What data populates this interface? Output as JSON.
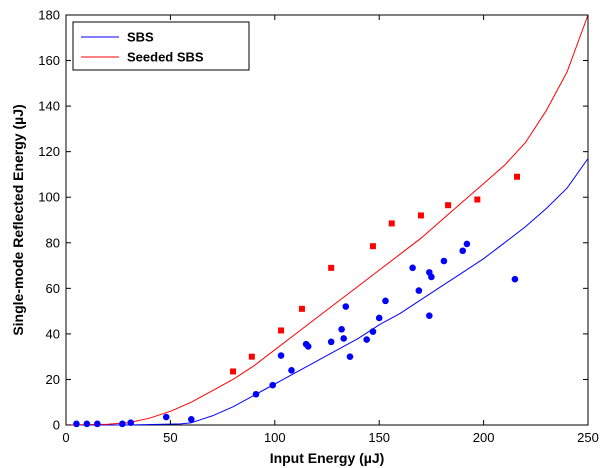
{
  "chart_data": {
    "type": "scatter",
    "title": "",
    "xlabel": "Input Energy (µJ)",
    "ylabel": "Single-mode Reflected Energy (µJ)",
    "xlim": [
      0,
      250
    ],
    "ylim": [
      0,
      180
    ],
    "xticks": [
      0,
      50,
      100,
      150,
      200,
      250
    ],
    "yticks": [
      0,
      20,
      40,
      60,
      80,
      100,
      120,
      140,
      160,
      180
    ],
    "grid": false,
    "legend": {
      "placement": "top-left",
      "entries": [
        "SBS",
        "Seeded SBS"
      ]
    },
    "series": [
      {
        "name": "SBS",
        "kind": "line",
        "color": "#0000ff",
        "x": [
          0,
          30,
          55,
          60,
          65,
          70,
          80,
          90,
          100,
          110,
          120,
          130,
          140,
          150,
          160,
          170,
          180,
          190,
          200,
          210,
          220,
          230,
          240,
          250
        ],
        "y": [
          0,
          0,
          0.5,
          1,
          2.5,
          4,
          8,
          13,
          18,
          23,
          28,
          33,
          38,
          44,
          49,
          55,
          61,
          67,
          73,
          80,
          87,
          95,
          104,
          117
        ]
      },
      {
        "name": "Seeded SBS",
        "kind": "line",
        "color": "#ff0000",
        "x": [
          0,
          20,
          30,
          40,
          50,
          60,
          70,
          80,
          90,
          100,
          110,
          120,
          130,
          140,
          150,
          160,
          170,
          180,
          190,
          200,
          210,
          220,
          230,
          240,
          250
        ],
        "y": [
          0,
          0.3,
          1,
          3,
          6,
          10,
          15,
          20,
          26,
          33,
          40,
          47,
          54,
          61,
          68,
          75,
          82,
          90,
          98,
          106,
          114,
          124,
          138,
          155,
          180
        ]
      },
      {
        "kind": "markers",
        "marker": "circle",
        "color": "#0000ff",
        "x": [
          5,
          10,
          15,
          27,
          31,
          48,
          60,
          91,
          99,
          103,
          108,
          115,
          116,
          127,
          132,
          133,
          134,
          136,
          144,
          147,
          150,
          153,
          166,
          169,
          174,
          175,
          174,
          181,
          190,
          192,
          215
        ],
        "y": [
          0.5,
          0.5,
          0.5,
          0.5,
          1,
          3.5,
          2.5,
          13.5,
          17.5,
          30.5,
          24,
          35.5,
          34.5,
          36.5,
          42,
          38,
          52,
          30,
          37.5,
          41,
          47,
          54.5,
          69,
          59,
          67,
          65,
          48,
          72,
          76.5,
          79.5,
          64
        ]
      },
      {
        "kind": "markers",
        "marker": "square",
        "color": "#ff0000",
        "x": [
          80,
          89,
          103,
          113,
          127,
          147,
          156,
          170,
          183,
          197,
          216
        ],
        "y": [
          23.5,
          30,
          41.5,
          51,
          69,
          78.5,
          88.5,
          92,
          96.5,
          99,
          109
        ]
      }
    ]
  }
}
